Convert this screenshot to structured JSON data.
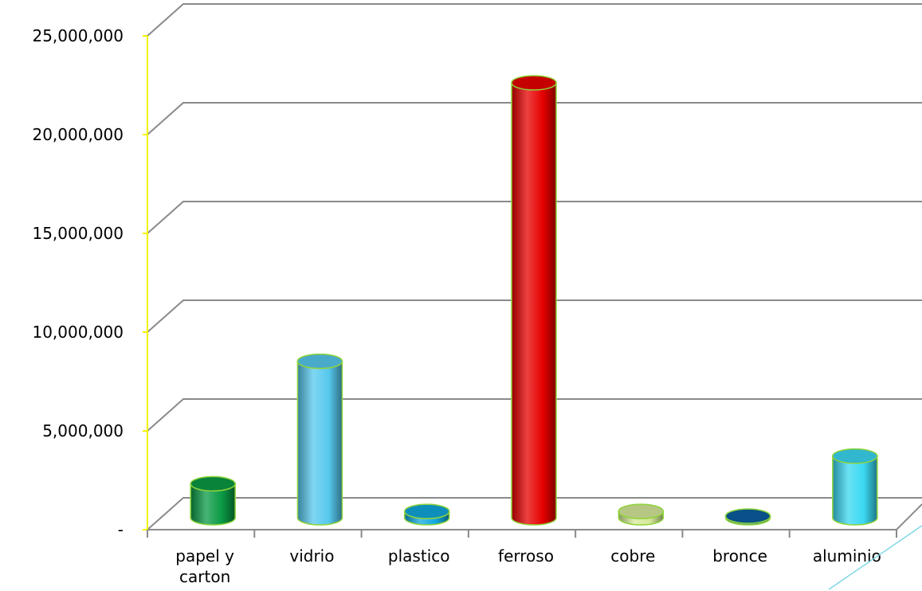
{
  "chart_data": {
    "type": "bar",
    "style": "3d-cylinder",
    "categories": [
      "papel y carton",
      "vidrio",
      "plastico",
      "ferroso",
      "cobre",
      "bronce",
      "aluminio"
    ],
    "category_label_lines": [
      [
        "papel y",
        "carton"
      ],
      [
        "vidrio"
      ],
      [
        "plastico"
      ],
      [
        "ferroso"
      ],
      [
        "cobre"
      ],
      [
        "bronce"
      ],
      [
        "aluminio"
      ]
    ],
    "values": [
      2000000,
      8200000,
      600000,
      22300000,
      600000,
      200000,
      3400000
    ],
    "bar_colors": [
      "#0a9a44",
      "#56c8ee",
      "#10a8dc",
      "#e60000",
      "#d6ea9a",
      "#0a5fa0",
      "#3ad8f2"
    ],
    "ylim": [
      0,
      25000000
    ],
    "y_ticks": [
      {
        "value": 0,
        "label": "-"
      },
      {
        "value": 5000000,
        "label": "5,000,000"
      },
      {
        "value": 10000000,
        "label": "10,000,000"
      },
      {
        "value": 15000000,
        "label": "15,000,000"
      },
      {
        "value": 20000000,
        "label": "20,000,000"
      },
      {
        "value": 25000000,
        "label": "25,000,000"
      }
    ],
    "grid": true,
    "title": "",
    "xlabel": "",
    "ylabel": ""
  }
}
